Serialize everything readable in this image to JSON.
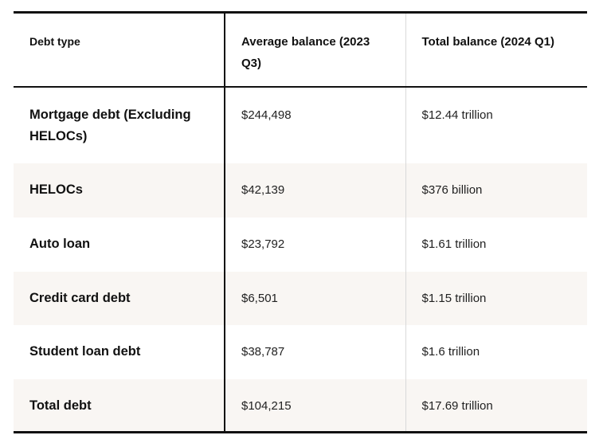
{
  "table": {
    "headers": [
      "Debt type",
      "Average balance (2023 Q3)",
      "Total balance (2024 Q1)"
    ],
    "rows": [
      {
        "debt_type": "Mortgage debt (Excluding HELOCs)",
        "average_balance": "$244,498",
        "total_balance": "$12.44 trillion"
      },
      {
        "debt_type": "HELOCs",
        "average_balance": "$42,139",
        "total_balance": "$376 billion"
      },
      {
        "debt_type": "Auto loan",
        "average_balance": "$23,792",
        "total_balance": "$1.61 trillion"
      },
      {
        "debt_type": "Credit card debt",
        "average_balance": "$6,501",
        "total_balance": "$1.15 trillion"
      },
      {
        "debt_type": "Student loan debt",
        "average_balance": "$38,787",
        "total_balance": "$1.6 trillion"
      },
      {
        "debt_type": "Total debt",
        "average_balance": "$104,215",
        "total_balance": "$17.69 trillion"
      }
    ]
  },
  "colors": {
    "border_dark": "#111111",
    "row_alt_background": "#f9f6f3",
    "divider_light": "#d9d9d9"
  }
}
